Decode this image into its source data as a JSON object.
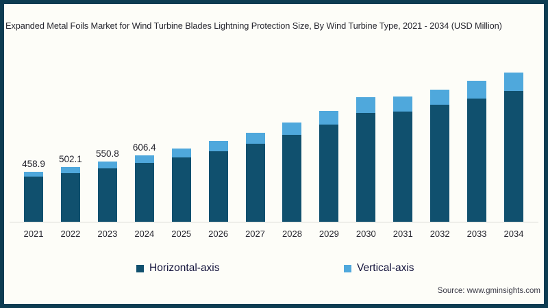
{
  "title": "Expanded Metal Foils Market for Wind Turbine Blades Lightning Protection Size, By Wind Turbine Type, 2021 - 2034 (USD Million)",
  "source": {
    "text": "Source: www.gminsights.com"
  },
  "colors": {
    "frame_border": "#0d3c52",
    "background": "#fdfdf8",
    "horizontal_axis_series": "#10506e",
    "vertical_axis_series": "#4fa8dc",
    "axis_line": "#d9d9d4"
  },
  "legend": {
    "items": [
      {
        "label": "Horizontal-axis",
        "color": "#10506e"
      },
      {
        "label": "Vertical-axis",
        "color": "#4fa8dc"
      }
    ]
  },
  "chart_data": {
    "type": "bar",
    "stacked": true,
    "title": "Expanded Metal Foils Market for Wind Turbine Blades Lightning Protection Size, By Wind Turbine Type, 2021 - 2034 (USD Million)",
    "xlabel": "",
    "ylabel": "USD Million",
    "ylim": [
      0,
      1400
    ],
    "grid": false,
    "legend_position": "bottom",
    "categories": [
      "2021",
      "2022",
      "2023",
      "2024",
      "2025",
      "2026",
      "2027",
      "2028",
      "2029",
      "2030",
      "2031",
      "2032",
      "2033",
      "2034"
    ],
    "series": [
      {
        "name": "Horizontal-axis",
        "color": "#10506e",
        "values": [
          411,
          446,
          487,
          539,
          589,
          648,
          715,
          798,
          890,
          997,
          1008,
          1070,
          1129,
          1196
        ]
      },
      {
        "name": "Vertical-axis",
        "color": "#4fa8dc",
        "values": [
          47.9,
          56.1,
          63.8,
          67.4,
          81,
          89,
          102,
          111,
          126,
          143,
          140,
          142,
          161,
          172
        ]
      }
    ],
    "totals": [
      458.9,
      502.1,
      550.8,
      606.4,
      670,
      737,
      817,
      909,
      1016,
      1140,
      1148,
      1212,
      1290,
      1368
    ],
    "value_labels": [
      "458.9",
      "502.1",
      "550.8",
      "606.4",
      "",
      "",
      "",
      "",
      "",
      "",
      "",
      "",
      "",
      ""
    ]
  }
}
